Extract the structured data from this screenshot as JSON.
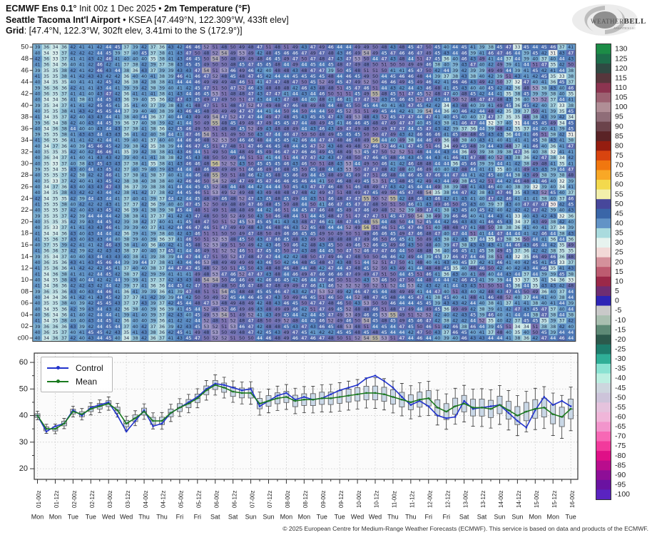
{
  "header": {
    "line1_bold1": "ECMWF Ens 0.1°",
    "line1_rest": " Init 00z 1 Dec 2025 • ",
    "line1_bold2": "2m Temperature (°F)",
    "line2_bold": "Seattle Tacoma Int'l Airport",
    "line2_rest": " • KSEA [47.449°N, 122.309°W, 433ft elev]",
    "line3_bold": "Grid",
    "line3_rest": ": [47.4°N, 122.3°W, 302ft elev, 3.41mi to the S (172.9°)]"
  },
  "logo": {
    "name_small_caps": "Weather",
    "name_bold": "BELL",
    "sub": "ANALYTICS LLC"
  },
  "footer": {
    "copyright": "© 2025 European Centre for Medium-Range Weather Forecasts (ECMWF). This service is based on data and products of the ECMWF."
  },
  "chart_data": {
    "type": "heatmap+line+boxplot",
    "time": {
      "xtick_labels": [
        "01-00z",
        "01-12z",
        "02-00z",
        "02-12z",
        "03-00z",
        "03-12z",
        "04-00z",
        "04-12z",
        "05-00z",
        "05-12z",
        "06-00z",
        "06-12z",
        "07-00z",
        "07-12z",
        "08-00z",
        "08-12z",
        "09-00z",
        "09-12z",
        "10-00z",
        "10-12z",
        "11-00z",
        "11-12z",
        "12-00z",
        "12-12z",
        "13-00z",
        "13-12z",
        "14-00z",
        "14-12z",
        "15-00z",
        "15-12z",
        "16-00z"
      ],
      "day_labels": [
        "Mon",
        "Mon",
        "Tue",
        "Tue",
        "Wed",
        "Wed",
        "Thu",
        "Thu",
        "Fri",
        "Fri",
        "Sat",
        "Sat",
        "Sun",
        "Sun",
        "Mon",
        "Mon",
        "Tue",
        "Tue",
        "Wed",
        "Wed",
        "Thu",
        "Thu",
        "Fri",
        "Fri",
        "Sat",
        "Sat",
        "Sun",
        "Sun",
        "Mon",
        "Mon",
        "Tue"
      ],
      "steps_per_tick": 2,
      "n_steps": 61
    },
    "heatmap": {
      "n_rows": 51,
      "n_cols": 61,
      "row_labels": [
        "50",
        "48",
        "46",
        "44",
        "42",
        "40",
        "38",
        "36",
        "34",
        "32",
        "30",
        "28",
        "26",
        "24",
        "22",
        "20",
        "18",
        "16",
        "14",
        "12",
        "10",
        "08",
        "06",
        "04",
        "02",
        "c00"
      ],
      "column_means": [
        40,
        35,
        35,
        37,
        41.5,
        40.5,
        42.5,
        43.5,
        44.5,
        42,
        37,
        39,
        41.5,
        38,
        38,
        41,
        43,
        44.5,
        46.5,
        49.5,
        51.5,
        50.5,
        49,
        48.5,
        48.5,
        44.5,
        45.5,
        46.5,
        47,
        45.5,
        46,
        46,
        46.5,
        46.5,
        47,
        47.5,
        48,
        48.5,
        48.5,
        48,
        47,
        46,
        45,
        46,
        46.5,
        43,
        41.5,
        43.5,
        44.5,
        43,
        43,
        42.5,
        44,
        42,
        40,
        41.5,
        42.5,
        43,
        40.5,
        39.5,
        42.5
      ],
      "member_spread": {
        "base": 2.2,
        "per_step": 0.18
      },
      "value_clamp": [
        27,
        60
      ],
      "cell_colormap": [
        [
          25,
          "#f3cfcf"
        ],
        [
          30,
          "#f2e9e6"
        ],
        [
          32,
          "#e3f0ec"
        ],
        [
          34,
          "#cfe9e9"
        ],
        [
          36,
          "#b3d9e0"
        ],
        [
          38,
          "#8fc0d6"
        ],
        [
          40,
          "#6da2cd"
        ],
        [
          42,
          "#5c8dc4"
        ],
        [
          44,
          "#4f7ab8"
        ],
        [
          45.5,
          "#4a68aa"
        ],
        [
          47,
          "#5e6cb0"
        ],
        [
          49,
          "#7374b4"
        ],
        [
          51,
          "#7e74b2"
        ],
        [
          53,
          "#9e98c4"
        ],
        [
          55,
          "#b7b2a4"
        ],
        [
          56.5,
          "#cdc693"
        ],
        [
          58,
          "#dfd76b"
        ],
        [
          60,
          "#efe44b"
        ]
      ],
      "text_dark": "#1b2540",
      "text_light": "#ffffff"
    },
    "colorbar": {
      "ticks": [
        130,
        125,
        120,
        115,
        110,
        105,
        100,
        95,
        90,
        85,
        80,
        75,
        70,
        65,
        60,
        55,
        50,
        45,
        40,
        35,
        30,
        25,
        20,
        15,
        10,
        5,
        0,
        -5,
        -10,
        -15,
        -20,
        -25,
        -30,
        -35,
        -40,
        -45,
        -50,
        -55,
        -60,
        -65,
        -70,
        -75,
        -80,
        -85,
        -90,
        -95,
        -100
      ],
      "colors": [
        "#1c8c46",
        "#1d6e4b",
        "#2f4a43",
        "#57363c",
        "#8c3450",
        "#9c6272",
        "#b08e96",
        "#8f6d78",
        "#6b434b",
        "#5a2326",
        "#951d10",
        "#d8440f",
        "#f1770f",
        "#f9a826",
        "#f3d94d",
        "#f2efab",
        "#47479b",
        "#3a66a8",
        "#6293c6",
        "#aadbde",
        "#e7f3ef",
        "#f2d9d7",
        "#d4919b",
        "#bd5b70",
        "#9b2848",
        "#6f2d72",
        "#2d24b5",
        "#c9c9c9",
        "#a9bfb0",
        "#5e8a76",
        "#2c594c",
        "#1e7c6c",
        "#2fae97",
        "#8ae2d2",
        "#bcefe1",
        "#cdd6de",
        "#cdc4da",
        "#e5c3dd",
        "#f0b6d9",
        "#f295cc",
        "#f768b5",
        "#f23a9c",
        "#df1087",
        "#b90d8d",
        "#8e0e97",
        "#6a12a1",
        "#5a23c0"
      ]
    },
    "meteogram": {
      "ylim": [
        16,
        63.5
      ],
      "yticks": [
        20,
        30,
        40,
        50,
        60
      ],
      "ytick_minor_step": 5,
      "grid": true,
      "legend_position": "upper-left",
      "series": [
        {
          "name": "Control",
          "color": "#2233cc",
          "values": [
            40,
            34,
            36,
            37,
            42,
            40,
            43,
            44,
            45,
            40,
            34,
            38,
            42,
            36,
            37,
            41,
            43,
            45,
            47,
            50,
            52,
            51.5,
            50.5,
            49.5,
            50,
            43.5,
            45.5,
            47.5,
            48.5,
            46,
            47,
            46,
            46.5,
            48,
            49.5,
            50.5,
            51.5,
            54,
            55,
            53,
            50.5,
            47,
            44,
            45.5,
            43.5,
            40,
            39,
            39.5,
            45.5,
            42.5,
            43,
            43.5,
            44,
            41,
            38,
            35.5,
            42,
            47,
            44,
            45.5,
            43.5
          ]
        },
        {
          "name": "Mean",
          "color": "#1a7a1f",
          "values": [
            40,
            35,
            35,
            37,
            41.5,
            40.5,
            42.5,
            43.5,
            44.5,
            42,
            37,
            39,
            41.5,
            38,
            38,
            41,
            43,
            44.5,
            46.5,
            49.5,
            51.5,
            50.5,
            49,
            48.5,
            48.5,
            44.5,
            45.5,
            46.5,
            47,
            45.5,
            46,
            46,
            46.5,
            46.5,
            47,
            47.5,
            48,
            48.5,
            48.5,
            48,
            47,
            46,
            45,
            46,
            46.5,
            43,
            41.5,
            43.5,
            44.5,
            43,
            43,
            42.5,
            44,
            42,
            40,
            41.5,
            42.5,
            43,
            40.5,
            39.5,
            42.5
          ]
        }
      ],
      "boxes": {
        "fill": "#c9d7e6",
        "edge": "#555555",
        "median_color": "#444444",
        "box_halfwidth": {
          "base": 0.7,
          "per_step": 0.05
        },
        "whisker_halfwidth": {
          "base": 1.6,
          "per_step": 0.11
        }
      }
    }
  }
}
